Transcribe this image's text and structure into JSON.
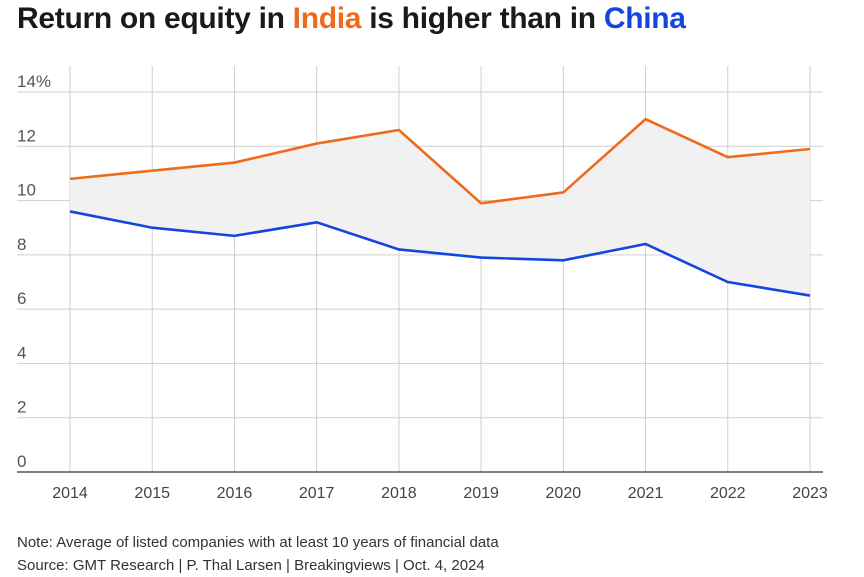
{
  "title": {
    "part1": "Return on equity in ",
    "india": "India",
    "part2": " is higher than in ",
    "china": "China"
  },
  "colors": {
    "india": "#ee6a1c",
    "china": "#1346de",
    "fill": "#f1f1f1",
    "grid": "#cfcfcf"
  },
  "note": "Note: Average of listed companies with at least 10 years of financial data",
  "source": "Source: GMT Research | P. Thal Larsen | Breakingviews | Oct. 4, 2024",
  "chart_data": {
    "type": "line",
    "x": [
      "2014",
      "2015",
      "2016",
      "2017",
      "2018",
      "2019",
      "2020",
      "2021",
      "2022",
      "2023"
    ],
    "ytick_labels": [
      "0",
      "2",
      "4",
      "6",
      "8",
      "10",
      "12",
      "14%"
    ],
    "yticks": [
      0,
      2,
      4,
      6,
      8,
      10,
      12,
      14
    ],
    "ylim": [
      0,
      14
    ],
    "grid": true,
    "shaded_between_series": true,
    "series": [
      {
        "name": "India",
        "values": [
          10.8,
          11.1,
          11.4,
          12.1,
          12.6,
          9.9,
          10.3,
          13.0,
          11.6,
          11.9
        ]
      },
      {
        "name": "China",
        "values": [
          9.6,
          9.0,
          8.7,
          9.2,
          8.2,
          7.9,
          7.8,
          8.4,
          7.0,
          6.5
        ]
      }
    ]
  }
}
